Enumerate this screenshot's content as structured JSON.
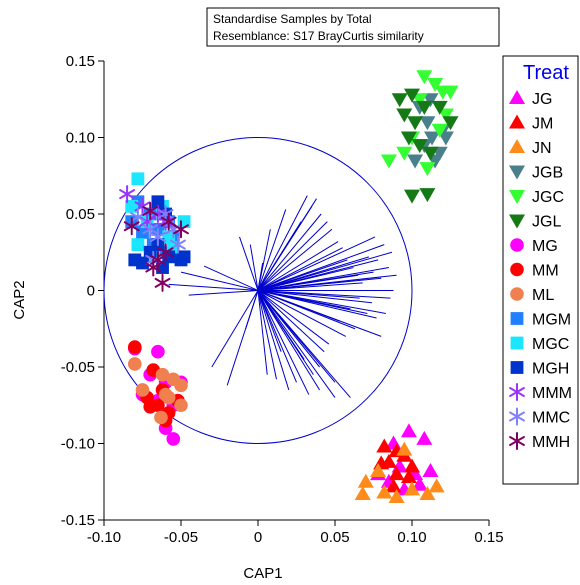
{
  "chart_data": {
    "type": "scatter",
    "title": "",
    "annotation": [
      "Standardise Samples by Total",
      "Resemblance: S17 BrayCurtis similarity"
    ],
    "xlabel": "CAP1",
    "ylabel": "CAP2",
    "xlim": [
      -0.1,
      0.15
    ],
    "ylim": [
      -0.15,
      0.15
    ],
    "xticks": [
      -0.1,
      -0.05,
      0,
      0.05,
      0.1,
      0.15
    ],
    "xtick_labels": [
      "-0.10",
      "-0.05",
      "0",
      "0.05",
      "0.10",
      "0.15"
    ],
    "yticks": [
      -0.15,
      -0.1,
      -0.05,
      0,
      0.05,
      0.1,
      0.15
    ],
    "ytick_labels": [
      "-0.15",
      "-0.10",
      "-0.05",
      "0",
      "0.05",
      "0.10",
      "0.15"
    ],
    "grid": false,
    "legend": {
      "title": "Treat",
      "position": "right"
    },
    "correlation_circle": {
      "center": [
        0,
        0
      ],
      "radius": 0.1
    },
    "vector_color": "#0000cc",
    "vectors": [
      [
        -0.05,
        0.012
      ],
      [
        -0.058,
        0.004
      ],
      [
        -0.045,
        -0.003
      ],
      [
        -0.035,
        0.016
      ],
      [
        -0.03,
        -0.05
      ],
      [
        -0.02,
        -0.062
      ],
      [
        -0.012,
        0.035
      ],
      [
        -0.008,
        -0.025
      ],
      [
        -0.005,
        0.03
      ],
      [
        0.003,
        0.018
      ],
      [
        0.006,
        -0.055
      ],
      [
        0.008,
        0.04
      ],
      [
        0.012,
        -0.058
      ],
      [
        0.015,
        -0.04
      ],
      [
        0.018,
        0.053
      ],
      [
        0.02,
        -0.065
      ],
      [
        0.022,
        0.035
      ],
      [
        0.025,
        -0.06
      ],
      [
        0.028,
        0.045
      ],
      [
        0.03,
        -0.045
      ],
      [
        0.032,
        0.062
      ],
      [
        0.033,
        -0.068
      ],
      [
        0.035,
        0.055
      ],
      [
        0.036,
        -0.055
      ],
      [
        0.038,
        0.06
      ],
      [
        0.04,
        -0.05
      ],
      [
        0.041,
        0.05
      ],
      [
        0.043,
        -0.04
      ],
      [
        0.045,
        0.045
      ],
      [
        0.046,
        -0.035
      ],
      [
        0.048,
        0.04
      ],
      [
        0.05,
        -0.06
      ],
      [
        0.052,
        0.032
      ],
      [
        0.053,
        -0.02
      ],
      [
        0.055,
        0.028
      ],
      [
        0.057,
        -0.03
      ],
      [
        0.058,
        0.02
      ],
      [
        0.06,
        -0.012
      ],
      [
        0.062,
        0.015
      ],
      [
        0.063,
        -0.025
      ],
      [
        0.065,
        0.01
      ],
      [
        0.066,
        -0.005
      ],
      [
        0.068,
        0.005
      ],
      [
        0.07,
        0.0
      ],
      [
        0.071,
        -0.015
      ],
      [
        0.072,
        0.022
      ],
      [
        0.074,
        -0.008
      ],
      [
        0.075,
        0.012
      ],
      [
        0.076,
        0.035
      ],
      [
        0.077,
        -0.018
      ],
      [
        0.078,
        0.02
      ],
      [
        0.08,
        -0.03
      ],
      [
        0.08,
        0.008
      ],
      [
        0.082,
        0.03
      ],
      [
        0.083,
        -0.015
      ],
      [
        0.085,
        0.015
      ],
      [
        0.086,
        -0.005
      ],
      [
        0.087,
        0.025
      ],
      [
        0.088,
        0.0
      ],
      [
        0.09,
        0.01
      ],
      [
        0.06,
        -0.07
      ],
      [
        0.05,
        -0.07
      ],
      [
        0.04,
        -0.065
      ]
    ],
    "series": [
      {
        "name": "JG",
        "marker": "triangle-up",
        "color": "#ff00ff",
        "points": [
          [
            0.088,
            -0.1
          ],
          [
            0.098,
            -0.092
          ],
          [
            0.108,
            -0.097
          ],
          [
            0.092,
            -0.115
          ],
          [
            0.102,
            -0.12
          ],
          [
            0.112,
            -0.118
          ],
          [
            0.085,
            -0.125
          ],
          [
            0.095,
            -0.13
          ],
          [
            0.105,
            -0.127
          ],
          [
            0.078,
            -0.12
          ]
        ]
      },
      {
        "name": "JM",
        "marker": "triangle-up",
        "color": "#ff0000",
        "points": [
          [
            0.082,
            -0.102
          ],
          [
            0.09,
            -0.105
          ],
          [
            0.085,
            -0.112
          ],
          [
            0.095,
            -0.108
          ],
          [
            0.1,
            -0.115
          ],
          [
            0.09,
            -0.12
          ],
          [
            0.08,
            -0.113
          ],
          [
            0.098,
            -0.122
          ],
          [
            0.088,
            -0.128
          ]
        ]
      },
      {
        "name": "JN",
        "marker": "triangle-up",
        "color": "#ff8c1a",
        "points": [
          [
            0.07,
            -0.125
          ],
          [
            0.068,
            -0.133
          ],
          [
            0.082,
            -0.132
          ],
          [
            0.09,
            -0.135
          ],
          [
            0.1,
            -0.13
          ],
          [
            0.11,
            -0.133
          ],
          [
            0.116,
            -0.128
          ],
          [
            0.095,
            -0.104
          ],
          [
            0.078,
            -0.118
          ]
        ]
      },
      {
        "name": "JGB",
        "marker": "triangle-down",
        "color": "#4a7f8c",
        "points": [
          [
            0.105,
            0.12
          ],
          [
            0.11,
            0.11
          ],
          [
            0.113,
            0.1
          ],
          [
            0.118,
            0.09
          ],
          [
            0.12,
            0.105
          ],
          [
            0.108,
            0.095
          ],
          [
            0.115,
            0.085
          ],
          [
            0.102,
            0.085
          ],
          [
            0.122,
            0.1
          ],
          [
            0.112,
            0.125
          ]
        ]
      },
      {
        "name": "JGC",
        "marker": "triangle-down",
        "color": "#33ff33",
        "points": [
          [
            0.108,
            0.14
          ],
          [
            0.12,
            0.13
          ],
          [
            0.125,
            0.13
          ],
          [
            0.115,
            0.135
          ],
          [
            0.105,
            0.125
          ],
          [
            0.122,
            0.115
          ],
          [
            0.118,
            0.105
          ],
          [
            0.1,
            0.1
          ],
          [
            0.095,
            0.09
          ],
          [
            0.085,
            0.085
          ],
          [
            0.11,
            0.08
          ]
        ]
      },
      {
        "name": "JGL",
        "marker": "triangle-down",
        "color": "#157a15",
        "points": [
          [
            0.1,
            0.128
          ],
          [
            0.108,
            0.12
          ],
          [
            0.102,
            0.11
          ],
          [
            0.095,
            0.115
          ],
          [
            0.105,
            0.095
          ],
          [
            0.098,
            0.1
          ],
          [
            0.112,
            0.09
          ],
          [
            0.1,
            0.062
          ],
          [
            0.11,
            0.063
          ],
          [
            0.118,
            0.12
          ],
          [
            0.092,
            0.125
          ],
          [
            0.125,
            0.11
          ]
        ]
      },
      {
        "name": "MG",
        "marker": "circle",
        "color": "#ff00ff",
        "points": [
          [
            -0.08,
            -0.038
          ],
          [
            -0.065,
            -0.04
          ],
          [
            -0.07,
            -0.055
          ],
          [
            -0.075,
            -0.068
          ],
          [
            -0.06,
            -0.06
          ],
          [
            -0.055,
            -0.075
          ],
          [
            -0.065,
            -0.072
          ],
          [
            -0.06,
            -0.09
          ],
          [
            -0.055,
            -0.097
          ],
          [
            -0.05,
            -0.06
          ]
        ]
      },
      {
        "name": "MM",
        "marker": "circle",
        "color": "#ff0000",
        "points": [
          [
            -0.08,
            -0.037
          ],
          [
            -0.068,
            -0.052
          ],
          [
            -0.062,
            -0.065
          ],
          [
            -0.072,
            -0.07
          ],
          [
            -0.065,
            -0.075
          ],
          [
            -0.058,
            -0.08
          ],
          [
            -0.052,
            -0.072
          ],
          [
            -0.07,
            -0.076
          ],
          [
            -0.06,
            -0.085
          ]
        ]
      },
      {
        "name": "ML",
        "marker": "circle",
        "color": "#f08050",
        "points": [
          [
            -0.08,
            -0.048
          ],
          [
            -0.075,
            -0.065
          ],
          [
            -0.062,
            -0.055
          ],
          [
            -0.055,
            -0.058
          ],
          [
            -0.05,
            -0.062
          ],
          [
            -0.058,
            -0.07
          ],
          [
            -0.06,
            -0.068
          ],
          [
            -0.063,
            -0.083
          ],
          [
            -0.05,
            -0.075
          ]
        ]
      },
      {
        "name": "MGM",
        "marker": "square",
        "color": "#2080ff",
        "points": [
          [
            -0.078,
            0.058
          ],
          [
            -0.07,
            0.05
          ],
          [
            -0.065,
            0.04
          ],
          [
            -0.075,
            0.038
          ],
          [
            -0.068,
            0.03
          ],
          [
            -0.058,
            0.045
          ],
          [
            -0.055,
            0.035
          ],
          [
            -0.06,
            0.025
          ],
          [
            -0.082,
            0.045
          ]
        ]
      },
      {
        "name": "MGC",
        "marker": "square",
        "color": "#1ae6ff",
        "points": [
          [
            -0.078,
            0.073
          ],
          [
            -0.082,
            0.055
          ],
          [
            -0.072,
            0.045
          ],
          [
            -0.078,
            0.03
          ],
          [
            -0.068,
            0.022
          ],
          [
            -0.058,
            0.035
          ],
          [
            -0.055,
            0.028
          ],
          [
            -0.062,
            0.055
          ],
          [
            -0.048,
            0.045
          ]
        ]
      },
      {
        "name": "MGH",
        "marker": "square",
        "color": "#0033cc",
        "points": [
          [
            -0.065,
            0.058
          ],
          [
            -0.06,
            0.05
          ],
          [
            -0.058,
            0.022
          ],
          [
            -0.062,
            0.015
          ],
          [
            -0.075,
            0.018
          ],
          [
            -0.07,
            0.025
          ],
          [
            -0.05,
            0.02
          ],
          [
            -0.048,
            0.022
          ],
          [
            -0.065,
            0.03
          ],
          [
            -0.08,
            0.02
          ]
        ]
      },
      {
        "name": "MMM",
        "marker": "asterisk",
        "color": "#9933ff",
        "points": [
          [
            -0.085,
            0.063
          ],
          [
            -0.075,
            0.055
          ],
          [
            -0.072,
            0.045
          ],
          [
            -0.065,
            0.05
          ],
          [
            -0.06,
            0.045
          ]
        ]
      },
      {
        "name": "MMC",
        "marker": "asterisk",
        "color": "#8080ff",
        "points": [
          [
            -0.078,
            0.048
          ],
          [
            -0.07,
            0.04
          ],
          [
            -0.065,
            0.035
          ],
          [
            -0.055,
            0.04
          ],
          [
            -0.052,
            0.03
          ],
          [
            -0.06,
            0.05
          ],
          [
            -0.068,
            0.02
          ]
        ]
      },
      {
        "name": "MMH",
        "marker": "asterisk",
        "color": "#800060",
        "points": [
          [
            -0.082,
            0.042
          ],
          [
            -0.07,
            0.052
          ],
          [
            -0.065,
            0.02
          ],
          [
            -0.068,
            0.015
          ],
          [
            -0.058,
            0.045
          ],
          [
            -0.05,
            0.04
          ],
          [
            -0.06,
            0.025
          ],
          [
            -0.062,
            0.005
          ]
        ]
      }
    ]
  }
}
